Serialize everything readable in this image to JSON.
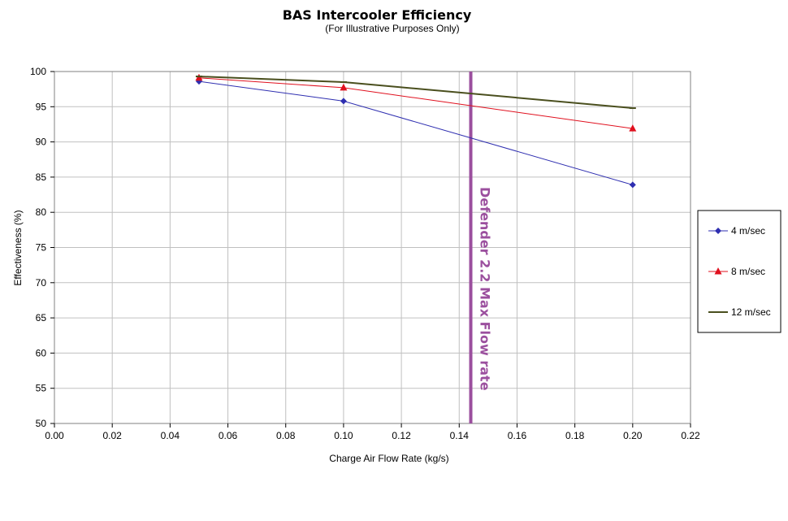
{
  "chart_data": {
    "type": "line",
    "title": "BAS Intercooler Efficiency",
    "subtitle": "(For Illustrative Purposes Only)",
    "xlabel": "Charge Air Flow Rate (kg/s)",
    "ylabel": "Effectiveness (%)",
    "xlim": [
      0,
      0.22
    ],
    "ylim": [
      50,
      100
    ],
    "x_ticks": [
      "0.00",
      "0.02",
      "0.04",
      "0.06",
      "0.08",
      "0.10",
      "0.12",
      "0.14",
      "0.16",
      "0.18",
      "0.20",
      "0.22"
    ],
    "y_ticks": [
      "50",
      "55",
      "60",
      "65",
      "70",
      "75",
      "80",
      "85",
      "90",
      "95",
      "100"
    ],
    "grid": true,
    "legend_position": "right",
    "x": [
      0.05,
      0.1,
      0.2
    ],
    "series": [
      {
        "name": "4 m/sec",
        "values": [
          98.6,
          95.8,
          83.9
        ],
        "color": "#2e2eb0",
        "marker": "diamond"
      },
      {
        "name": "8 m/sec",
        "values": [
          99.1,
          97.7,
          91.9
        ],
        "color": "#e0101e",
        "marker": "triangle"
      },
      {
        "name": "12 m/sec",
        "values": [
          99.3,
          98.5,
          94.8
        ],
        "color": "#4a4f1e",
        "marker": "none"
      }
    ],
    "annotations": [
      {
        "type": "vline",
        "x": 0.144,
        "label": "Defender 2.2 Max Flow rate",
        "color": "#9b4f9e"
      }
    ]
  }
}
